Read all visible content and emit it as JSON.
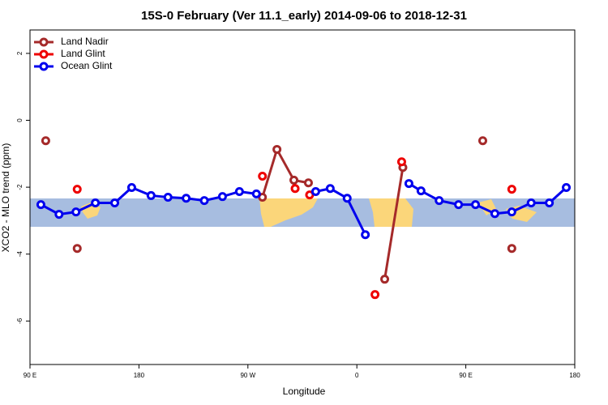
{
  "chart_data": {
    "type": "line",
    "title": "15S-0 February (Ver 11.1_early)   2014-09-06 to 2018-12-31",
    "xlabel": "Longitude",
    "ylabel": "XCO2 - MLO trend (ppm)",
    "xlim": [
      90,
      540
    ],
    "xticks": [
      {
        "value": 90,
        "label": "90 E"
      },
      {
        "value": 180,
        "label": "180"
      },
      {
        "value": 270,
        "label": "90 W"
      },
      {
        "value": 360,
        "label": "0"
      },
      {
        "value": 450,
        "label": "90 E"
      },
      {
        "value": 540,
        "label": "180"
      }
    ],
    "ylim": [
      -7.3,
      2.7
    ],
    "yticks": [
      2,
      0,
      -2,
      -4,
      -6
    ],
    "legend": "upper left",
    "series": [
      {
        "name": "Land Nadir",
        "color": "#a52a2a",
        "x": [
          103,
          null,
          129,
          null,
          282,
          294,
          308,
          320,
          null,
          383,
          398,
          null,
          464,
          null,
          488
        ],
        "values": [
          -0.61,
          null,
          -3.83,
          null,
          -2.3,
          -0.87,
          -1.79,
          -1.87,
          null,
          -4.75,
          -1.41,
          null,
          -0.61,
          null,
          -3.83
        ]
      },
      {
        "name": "Land Glint",
        "color": "#ee0000",
        "x": [
          129,
          null,
          282,
          null,
          309,
          null,
          321,
          null,
          375,
          null,
          397,
          null,
          488
        ],
        "values": [
          -2.06,
          null,
          -1.67,
          null,
          -2.04,
          null,
          -2.23,
          null,
          -5.21,
          null,
          -1.24,
          null,
          -2.06
        ]
      },
      {
        "name": "Ocean Glint",
        "color": "#0000ee",
        "x": [
          99,
          114,
          128,
          144,
          160,
          174,
          190,
          204,
          219,
          234,
          249,
          263,
          277,
          null,
          326,
          338,
          352,
          367,
          null,
          403,
          413,
          428,
          444,
          458,
          474,
          488,
          504,
          519,
          533
        ],
        "values": [
          -2.52,
          -2.81,
          -2.74,
          -2.47,
          -2.47,
          -2.01,
          -2.25,
          -2.3,
          -2.33,
          -2.4,
          -2.28,
          -2.13,
          -2.2,
          null,
          -2.13,
          -2.04,
          -2.33,
          -3.42,
          null,
          -1.89,
          -2.11,
          -2.4,
          -2.52,
          -2.52,
          -2.79,
          -2.74,
          -2.47,
          -2.47,
          -2.01
        ]
      }
    ]
  }
}
